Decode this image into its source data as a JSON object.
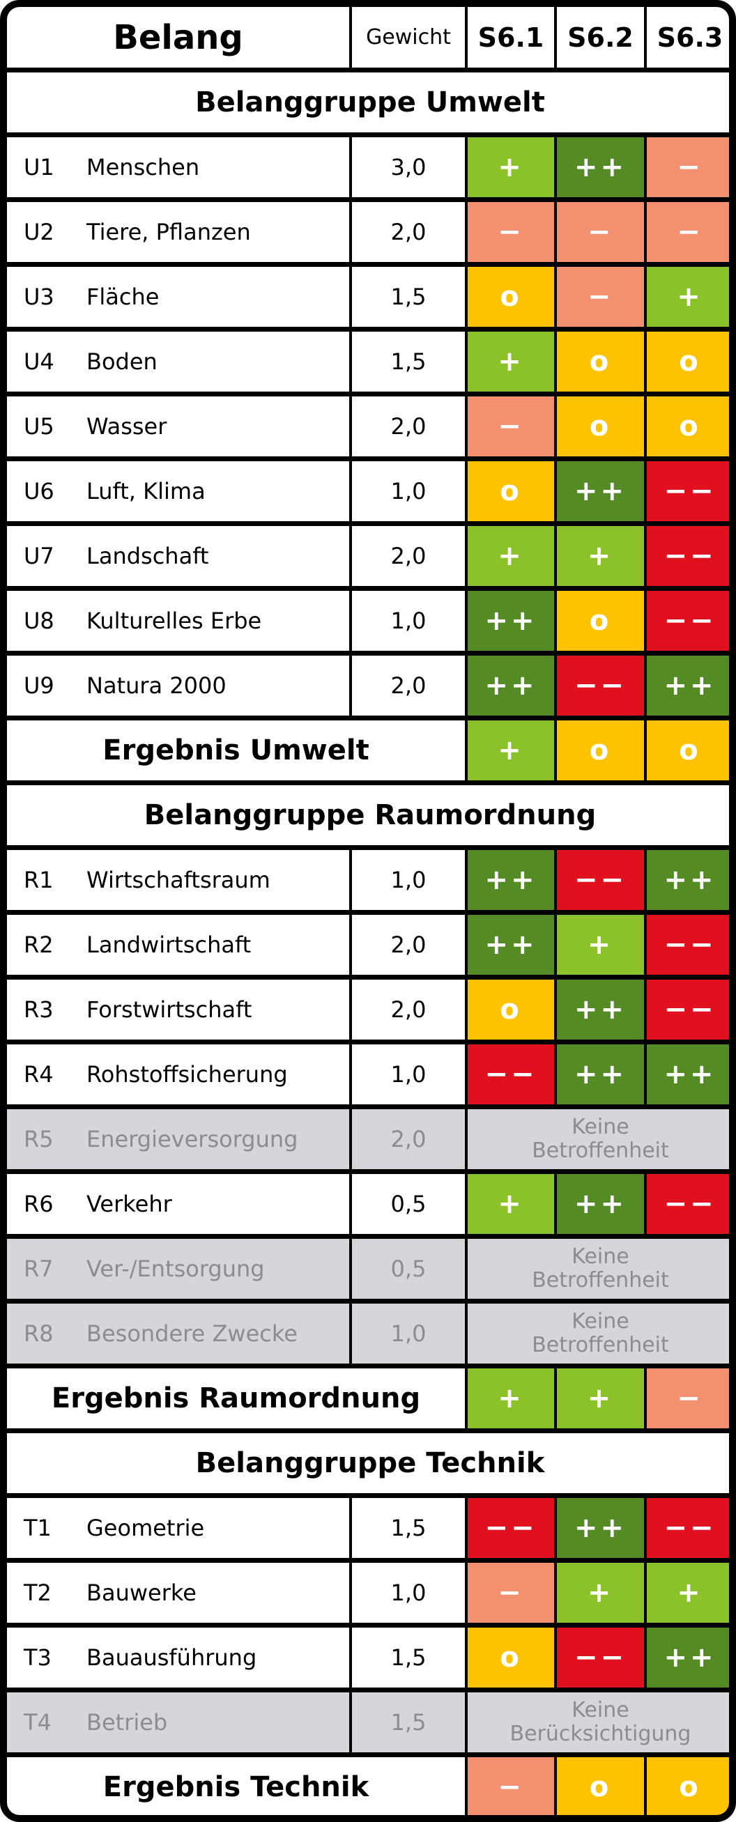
{
  "header": {
    "belang": "Belang",
    "gewicht": "Gewicht",
    "s1": "S6.1",
    "s2": "S6.2",
    "s3": "S6.3"
  },
  "symbols": {
    "pp": "++",
    "p": "+",
    "o": "o",
    "m": "−",
    "mm": "−−"
  },
  "colors": {
    "pp": "#548b25",
    "p": "#8bc22a",
    "o": "#fdc300",
    "m": "#f3906f",
    "mm": "#e0101f",
    "disabled": "#d5d6da"
  },
  "groups": [
    {
      "title": "Belanggruppe Umwelt",
      "rows": [
        {
          "code": "U1",
          "name": "Menschen",
          "weight": "3,0",
          "values": [
            "p",
            "pp",
            "m"
          ]
        },
        {
          "code": "U2",
          "name": "Tiere, Pflanzen",
          "weight": "2,0",
          "values": [
            "m",
            "m",
            "m"
          ]
        },
        {
          "code": "U3",
          "name": "Fläche",
          "weight": "1,5",
          "values": [
            "o",
            "m",
            "p"
          ]
        },
        {
          "code": "U4",
          "name": "Boden",
          "weight": "1,5",
          "values": [
            "p",
            "o",
            "o"
          ]
        },
        {
          "code": "U5",
          "name": "Wasser",
          "weight": "2,0",
          "values": [
            "m",
            "o",
            "o"
          ]
        },
        {
          "code": "U6",
          "name": "Luft, Klima",
          "weight": "1,0",
          "values": [
            "o",
            "pp",
            "mm"
          ]
        },
        {
          "code": "U7",
          "name": "Landschaft",
          "weight": "2,0",
          "values": [
            "p",
            "p",
            "mm"
          ]
        },
        {
          "code": "U8",
          "name": "Kulturelles Erbe",
          "weight": "1,0",
          "values": [
            "pp",
            "o",
            "mm"
          ]
        },
        {
          "code": "U9",
          "name": "Natura 2000",
          "weight": "2,0",
          "values": [
            "pp",
            "mm",
            "pp"
          ]
        }
      ],
      "result": {
        "label": "Ergebnis Umwelt",
        "values": [
          "p",
          "o",
          "o"
        ]
      }
    },
    {
      "title": "Belanggruppe Raumordnung",
      "rows": [
        {
          "code": "R1",
          "name": "Wirtschaftsraum",
          "weight": "1,0",
          "values": [
            "pp",
            "mm",
            "pp"
          ]
        },
        {
          "code": "R2",
          "name": "Landwirtschaft",
          "weight": "2,0",
          "values": [
            "pp",
            "p",
            "mm"
          ]
        },
        {
          "code": "R3",
          "name": "Forstwirtschaft",
          "weight": "2,0",
          "values": [
            "o",
            "pp",
            "mm"
          ]
        },
        {
          "code": "R4",
          "name": "Rohstoffsicherung",
          "weight": "1,0",
          "values": [
            "mm",
            "pp",
            "pp"
          ]
        },
        {
          "code": "R5",
          "name": "Energieversorgung",
          "weight": "2,0",
          "disabled": true,
          "note": [
            "Keine",
            "Betroffenheit"
          ]
        },
        {
          "code": "R6",
          "name": "Verkehr",
          "weight": "0,5",
          "values": [
            "p",
            "pp",
            "mm"
          ]
        },
        {
          "code": "R7",
          "name": "Ver-/Entsorgung",
          "weight": "0,5",
          "disabled": true,
          "note": [
            "Keine",
            "Betroffenheit"
          ]
        },
        {
          "code": "R8",
          "name": "Besondere Zwecke",
          "weight": "1,0",
          "disabled": true,
          "note": [
            "Keine",
            "Betroffenheit"
          ]
        }
      ],
      "result": {
        "label": "Ergebnis Raumordnung",
        "values": [
          "p",
          "p",
          "m"
        ]
      }
    },
    {
      "title": "Belanggruppe Technik",
      "rows": [
        {
          "code": "T1",
          "name": "Geometrie",
          "weight": "1,5",
          "values": [
            "mm",
            "pp",
            "mm"
          ]
        },
        {
          "code": "T2",
          "name": "Bauwerke",
          "weight": "1,0",
          "values": [
            "m",
            "p",
            "p"
          ]
        },
        {
          "code": "T3",
          "name": "Bauausführung",
          "weight": "1,5",
          "values": [
            "o",
            "mm",
            "pp"
          ]
        },
        {
          "code": "T4",
          "name": "Betrieb",
          "weight": "1,5",
          "disabled": true,
          "note": [
            "Keine",
            "Berücksichtigung"
          ]
        }
      ],
      "result": {
        "label": "Ergebnis Technik",
        "values": [
          "m",
          "o",
          "o"
        ]
      }
    }
  ]
}
